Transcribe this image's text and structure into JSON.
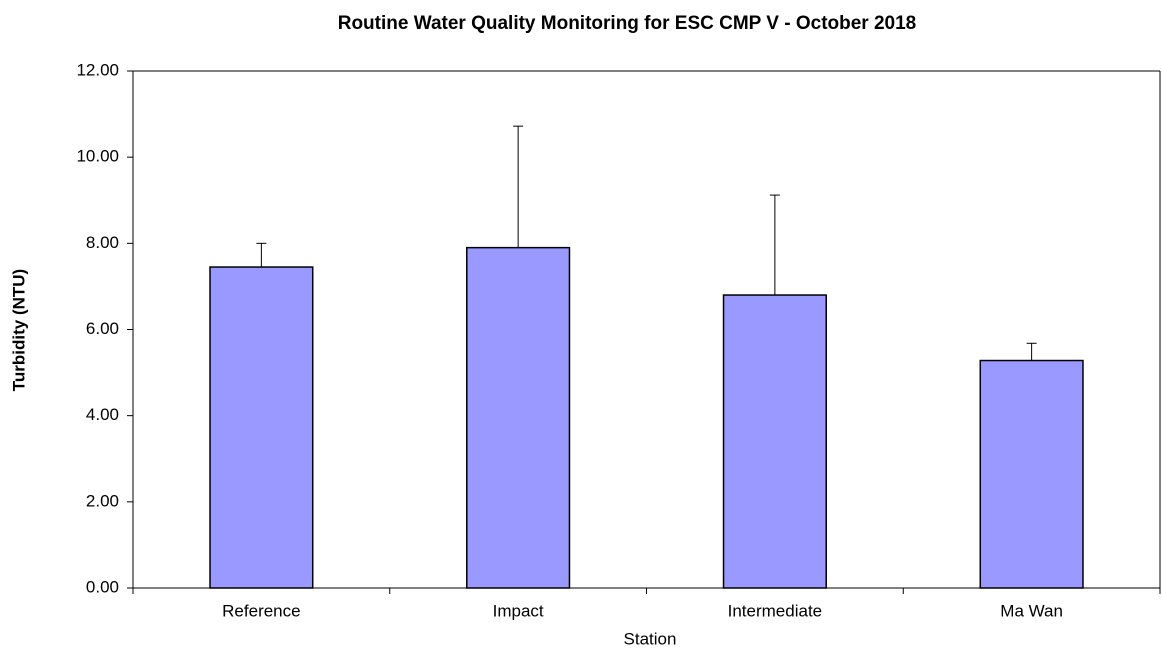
{
  "chart_data": {
    "type": "bar",
    "title": "Routine Water Quality Monitoring for ESC CMP V -  October 2018",
    "x_label": "Station",
    "y_label": "Turbidity (NTU)",
    "categories": [
      "Reference",
      "Impact",
      "Intermediate",
      "Ma Wan"
    ],
    "values": [
      7.45,
      7.9,
      6.8,
      5.28
    ],
    "errors": [
      0.55,
      2.82,
      2.32,
      0.4
    ],
    "color": "#9999ff",
    "ylim": [
      0,
      12
    ],
    "yticks": [
      {
        "value": 0,
        "label": "0.00"
      },
      {
        "value": 2,
        "label": "2.00"
      },
      {
        "value": 4,
        "label": "4.00"
      },
      {
        "value": 6,
        "label": "6.00"
      },
      {
        "value": 8,
        "label": "8.00"
      },
      {
        "value": 10,
        "label": "10.00"
      },
      {
        "value": 12,
        "label": "12.00"
      }
    ],
    "grid": false
  }
}
